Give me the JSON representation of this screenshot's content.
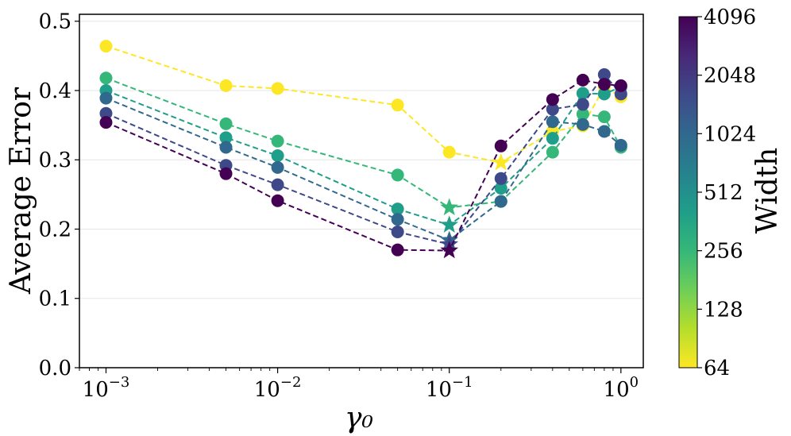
{
  "chart_data": {
    "type": "line",
    "xlabel": "γ₀",
    "ylabel": "Average Error",
    "xscale": "log",
    "xlim": [
      0.0007,
      1.35
    ],
    "ylim": [
      0.0,
      0.51
    ],
    "x": [
      0.001,
      0.005,
      0.01,
      0.05,
      0.1,
      0.2,
      0.4,
      0.6,
      0.8,
      1.0
    ],
    "y_ticks": [
      {
        "value": 0.0,
        "label": "0.0"
      },
      {
        "value": 0.1,
        "label": "0.1"
      },
      {
        "value": 0.2,
        "label": "0.2"
      },
      {
        "value": 0.3,
        "label": "0.3"
      },
      {
        "value": 0.4,
        "label": "0.4"
      },
      {
        "value": 0.5,
        "label": "0.5"
      }
    ],
    "x_ticks": [
      {
        "value": 0.001,
        "base": "10",
        "exp": "−3"
      },
      {
        "value": 0.01,
        "base": "10",
        "exp": "−2"
      },
      {
        "value": 0.1,
        "base": "10",
        "exp": "−1"
      },
      {
        "value": 1.0,
        "base": "10",
        "exp": "0"
      }
    ],
    "grid": "horizontal",
    "colorbar": {
      "label": "Width",
      "ticks": [
        "64",
        "128",
        "256",
        "512",
        "1024",
        "2048",
        "4096"
      ],
      "colormap": "viridis",
      "colors": [
        "#fde725",
        "#b5de2b",
        "#6ece58",
        "#35b779",
        "#1f9e89",
        "#26828e",
        "#31688e",
        "#3e4989",
        "#482878",
        "#440154"
      ]
    },
    "series": [
      {
        "name": "64",
        "color": "#fde725",
        "values": [
          0.464,
          0.407,
          0.403,
          0.379,
          0.311,
          0.296,
          0.341,
          0.349,
          0.405,
          0.391
        ],
        "best_index": 5
      },
      {
        "name": "256",
        "color": "#35b779",
        "values": [
          0.418,
          0.352,
          0.327,
          0.278,
          0.231,
          0.24,
          0.311,
          0.366,
          0.362,
          0.318
        ],
        "best_index": 4
      },
      {
        "name": "512",
        "color": "#1f9e89",
        "values": [
          0.4,
          0.332,
          0.306,
          0.229,
          0.206,
          0.259,
          0.331,
          0.396,
          0.395,
          0.405
        ],
        "best_index": 4
      },
      {
        "name": "1024",
        "color": "#31688e",
        "values": [
          0.389,
          0.318,
          0.289,
          0.214,
          0.184,
          0.24,
          0.355,
          0.351,
          0.341,
          0.321
        ],
        "best_index": 4
      },
      {
        "name": "2048",
        "color": "#3e4989",
        "values": [
          0.367,
          0.292,
          0.264,
          0.196,
          0.178,
          0.273,
          0.373,
          0.38,
          0.423,
          0.395
        ],
        "best_index": 4
      },
      {
        "name": "4096",
        "color": "#440154",
        "values": [
          0.354,
          0.28,
          0.241,
          0.17,
          0.169,
          0.32,
          0.387,
          0.415,
          0.409,
          0.407
        ],
        "best_index": 4
      }
    ]
  }
}
